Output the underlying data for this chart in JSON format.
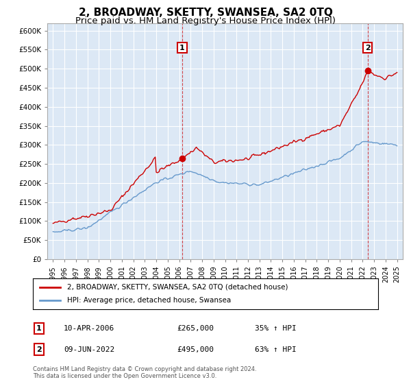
{
  "title": "2, BROADWAY, SKETTY, SWANSEA, SA2 0TQ",
  "subtitle": "Price paid vs. HM Land Registry's House Price Index (HPI)",
  "title_fontsize": 11,
  "subtitle_fontsize": 9.5,
  "red_label": "2, BROADWAY, SKETTY, SWANSEA, SA2 0TQ (detached house)",
  "blue_label": "HPI: Average price, detached house, Swansea",
  "red_color": "#cc0000",
  "blue_color": "#6699cc",
  "marker1_label": "1",
  "marker1_date": "10-APR-2006",
  "marker1_price": "£265,000",
  "marker1_hpi": "35% ↑ HPI",
  "marker1_x": 2006.27,
  "marker1_y": 265000,
  "marker2_label": "2",
  "marker2_date": "09-JUN-2022",
  "marker2_price": "£495,000",
  "marker2_hpi": "63% ↑ HPI",
  "marker2_x": 2022.44,
  "marker2_y": 495000,
  "ylim": [
    0,
    620000
  ],
  "xlim": [
    1994.5,
    2025.5
  ],
  "yticks": [
    0,
    50000,
    100000,
    150000,
    200000,
    250000,
    300000,
    350000,
    400000,
    450000,
    500000,
    550000,
    600000
  ],
  "ytick_labels": [
    "£0",
    "£50K",
    "£100K",
    "£150K",
    "£200K",
    "£250K",
    "£300K",
    "£350K",
    "£400K",
    "£450K",
    "£500K",
    "£550K",
    "£600K"
  ],
  "xticks": [
    1995,
    1996,
    1997,
    1998,
    1999,
    2000,
    2001,
    2002,
    2003,
    2004,
    2005,
    2006,
    2007,
    2008,
    2009,
    2010,
    2011,
    2012,
    2013,
    2014,
    2015,
    2016,
    2017,
    2018,
    2019,
    2020,
    2021,
    2022,
    2023,
    2024,
    2025
  ],
  "footnote": "Contains HM Land Registry data © Crown copyright and database right 2024.\nThis data is licensed under the Open Government Licence v3.0.",
  "bg_color": "#ffffff",
  "plot_bg_color": "#dce8f5",
  "grid_color": "#ffffff"
}
